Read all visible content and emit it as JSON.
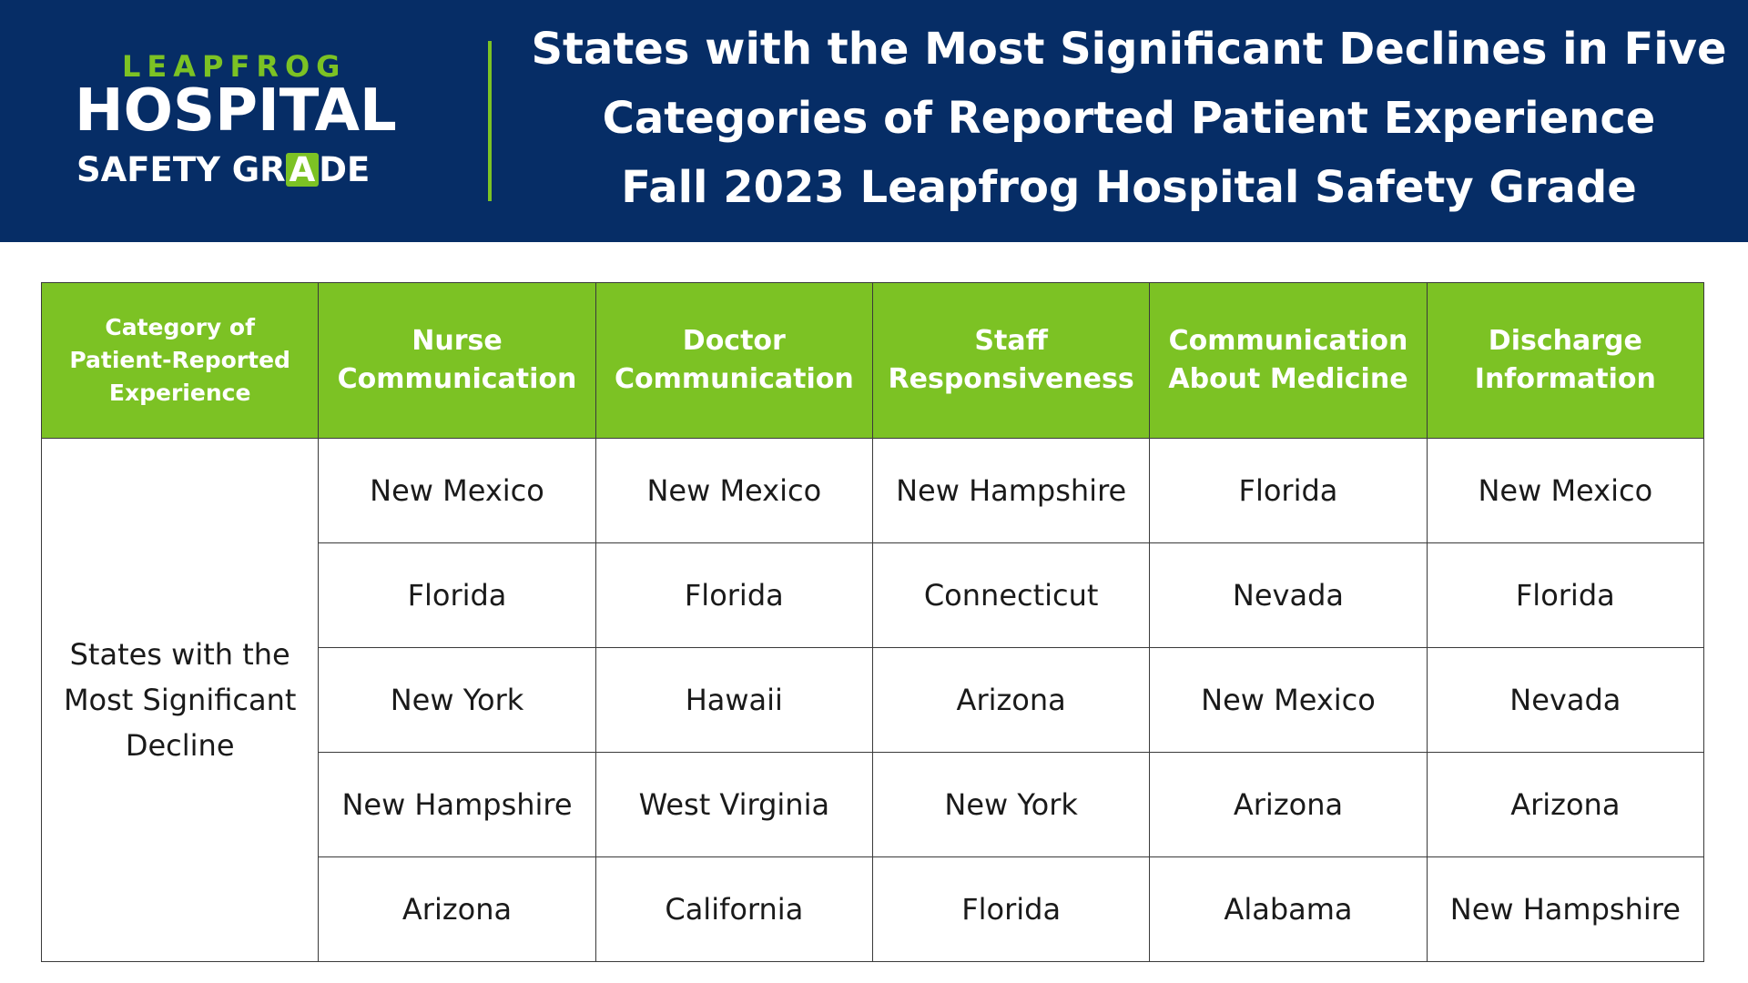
{
  "logo": {
    "line1": "LEAPFROG",
    "line2": "HOSPITAL",
    "line3_pre": "SAFETY GR",
    "line3_badge": "A",
    "line3_post": "DE"
  },
  "title": {
    "line1": "States with the Most Significant Declines in Five",
    "line2": "Categories of Reported Patient Experience",
    "line3": "Fall 2023 Leapfrog Hospital Safety Grade"
  },
  "table": {
    "header_first": {
      "line1": "Category of",
      "line2": "Patient-Reported",
      "line3": "Experience"
    },
    "columns": [
      {
        "line1": "Nurse",
        "line2": "Communication"
      },
      {
        "line1": "Doctor",
        "line2": "Communication"
      },
      {
        "line1": "Staff",
        "line2": "Responsiveness"
      },
      {
        "line1": "Communication",
        "line2": "About Medicine"
      },
      {
        "line1": "Discharge",
        "line2": "Information"
      }
    ],
    "row_label": {
      "line1": "States with the",
      "line2": "Most Significant",
      "line3": "Decline"
    },
    "rows": [
      [
        "New Mexico",
        "New Mexico",
        "New Hampshire",
        "Florida",
        "New Mexico"
      ],
      [
        "Florida",
        "Florida",
        "Connecticut",
        "Nevada",
        "Florida"
      ],
      [
        "New York",
        "Hawaii",
        "Arizona",
        "New Mexico",
        "Nevada"
      ],
      [
        "New Hampshire",
        "West Virginia",
        "New York",
        "Arizona",
        "Arizona"
      ],
      [
        "Arizona",
        "California",
        "Florida",
        "Alabama",
        "New Hampshire"
      ]
    ]
  },
  "colors": {
    "header_bg": "#062d66",
    "accent_green": "#7cc224"
  }
}
